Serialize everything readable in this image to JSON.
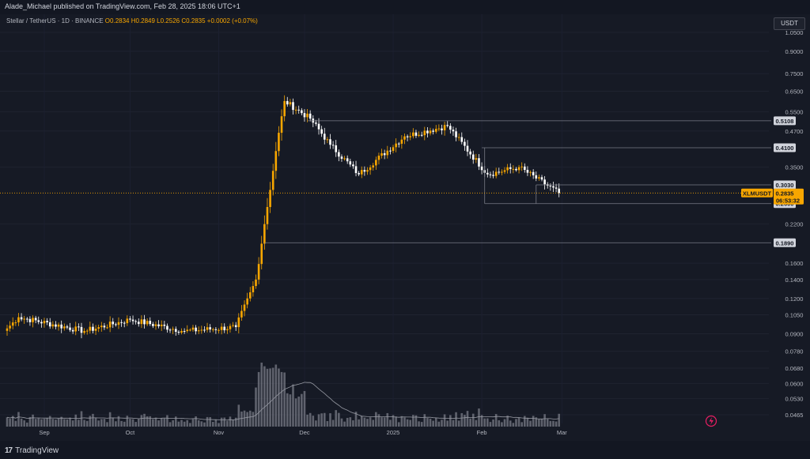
{
  "header": {
    "publisher_line": "Alade_Michael published on TradingView.com, Feb 28, 2025 18:06 UTC+1"
  },
  "legend": {
    "symbol_line": "Stellar / TetherUS · 1D · BINANCE",
    "ohlc": "O0.2834  H0.2849  L0.2526  C0.2835  +0.0002 (+0.07%)"
  },
  "currency_button": "USDT",
  "footer": {
    "brand": "TradingView",
    "brand_mark": "17"
  },
  "chart_data": {
    "type": "candlestick",
    "symbol": "XLMUSDT",
    "exchange": "BINANCE",
    "interval": "1D",
    "scale": "log",
    "colors": {
      "up": "#f7a600",
      "down": "#ffffff",
      "volume": "#787b86",
      "level": "#787b86",
      "price_tag": "#f7a600"
    },
    "y_ticks": [
      "1.0500",
      "0.9000",
      "0.7500",
      "0.6500",
      "0.5500",
      "0.4700",
      "0.3500",
      "0.2200",
      "0.1600",
      "0.1400",
      "0.1200",
      "0.1050",
      "0.0900",
      "0.0780",
      "0.0680",
      "0.0600",
      "0.0530",
      "0.0465"
    ],
    "x_ticks": [
      "Sep",
      "Oct",
      "Nov",
      "Dec",
      "2025",
      "Feb",
      "Mar"
    ],
    "levels": [
      {
        "label": "0.5108",
        "value": 0.5108
      },
      {
        "label": "0.4100",
        "value": 0.41
      },
      {
        "label": "0.3030",
        "value": 0.303
      },
      {
        "label": "0.2600",
        "value": 0.26
      },
      {
        "label": "0.1890",
        "value": 0.189
      }
    ],
    "last_price": {
      "symbol": "XLMUSDT",
      "price": "0.2835",
      "countdown": "06:53:32"
    },
    "key_points": [
      {
        "date": "2024-08-19",
        "close": 0.094
      },
      {
        "date": "2024-08-23",
        "close": 0.103
      },
      {
        "date": "2024-09-15",
        "close": 0.092
      },
      {
        "date": "2024-10-01",
        "close": 0.101
      },
      {
        "date": "2024-10-20",
        "close": 0.092
      },
      {
        "date": "2024-11-07",
        "close": 0.095
      },
      {
        "date": "2024-11-14",
        "close": 0.14
      },
      {
        "date": "2024-11-17",
        "close": 0.22
      },
      {
        "date": "2024-11-23",
        "close": 0.53
      },
      {
        "date": "2024-11-24",
        "close": 0.6
      },
      {
        "date": "2024-12-03",
        "close": 0.52
      },
      {
        "date": "2024-12-10",
        "close": 0.42
      },
      {
        "date": "2024-12-20",
        "close": 0.33
      },
      {
        "date": "2025-01-05",
        "close": 0.45
      },
      {
        "date": "2025-01-20",
        "close": 0.49
      },
      {
        "date": "2025-02-03",
        "close": 0.33
      },
      {
        "date": "2025-02-14",
        "close": 0.35
      },
      {
        "date": "2025-02-28",
        "close": 0.2835
      }
    ]
  }
}
